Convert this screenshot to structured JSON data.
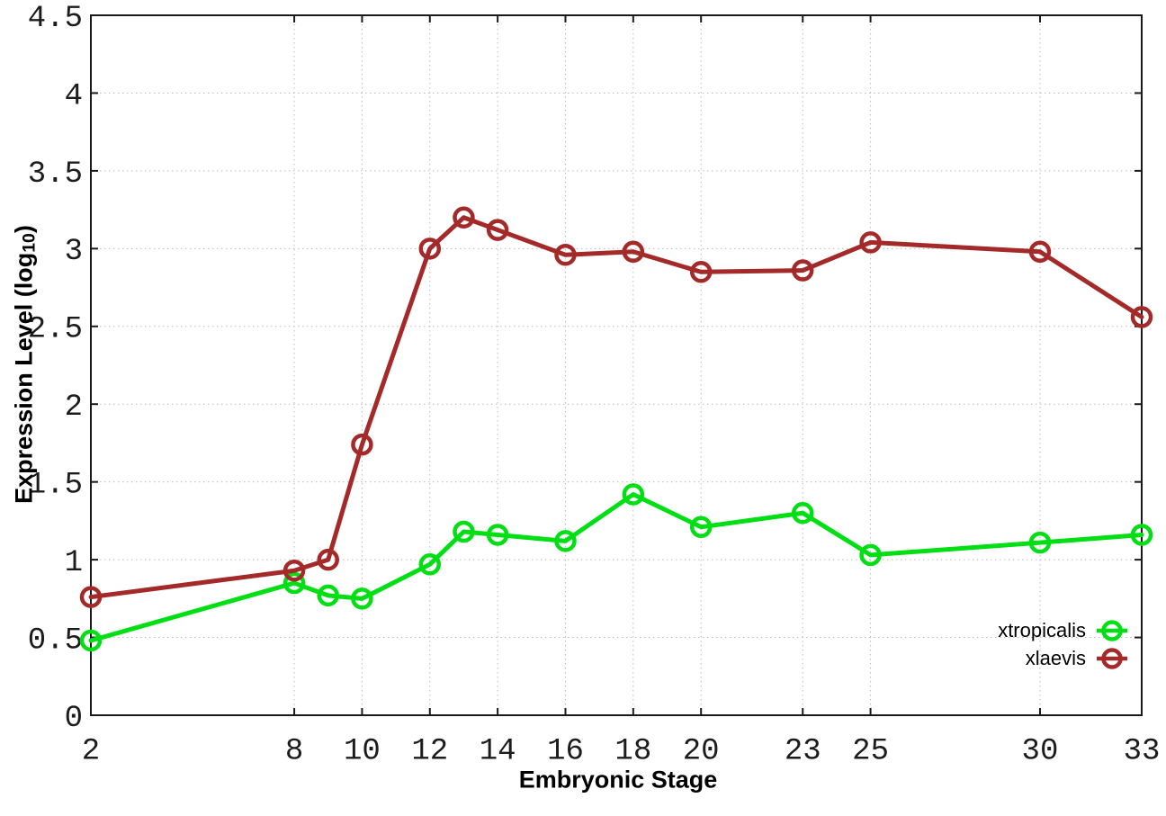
{
  "chart_data": {
    "type": "line",
    "title": "",
    "xlabel": "Embryonic Stage",
    "ylabel": "Expression Level (log10)",
    "ylabel_parts": {
      "prefix": "Expression Level (log",
      "subscript": "10",
      "suffix": ")"
    },
    "x": [
      2,
      8,
      9,
      10,
      12,
      13,
      14,
      16,
      18,
      20,
      23,
      25,
      30,
      33
    ],
    "series": [
      {
        "name": "xtropicalis",
        "color": "#00DE14",
        "values": [
          0.48,
          0.85,
          0.77,
          0.75,
          0.97,
          1.18,
          1.16,
          1.12,
          1.42,
          1.21,
          1.3,
          1.03,
          1.11,
          1.16
        ]
      },
      {
        "name": "xlaevis",
        "color": "#A42A2A",
        "values": [
          0.76,
          0.93,
          1.0,
          1.74,
          3.0,
          3.2,
          3.12,
          2.96,
          2.98,
          2.85,
          2.86,
          3.04,
          2.98,
          2.56
        ]
      }
    ],
    "xticks": [
      2,
      8,
      10,
      12,
      14,
      16,
      18,
      20,
      23,
      25,
      30,
      33
    ],
    "yticks": [
      0,
      0.5,
      1,
      1.5,
      2,
      2.5,
      3,
      3.5,
      4,
      4.5
    ],
    "xlim": [
      2,
      33
    ],
    "ylim": [
      0,
      4.5
    ],
    "grid": true,
    "legend_position": "bottom-right",
    "colors": {
      "axis": "#1a1a1a",
      "grid": "#bcbcbc",
      "background": "#ffffff"
    }
  }
}
